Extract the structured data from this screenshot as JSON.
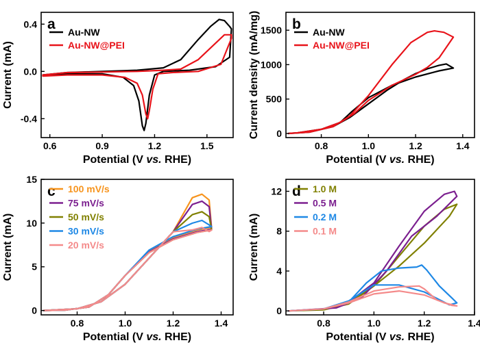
{
  "chart_data": [
    {
      "type": "line",
      "panel": "a",
      "xlabel": "Potential (V vs. RHE)",
      "ylabel": "Current (mA)",
      "xlim": [
        0.55,
        1.65
      ],
      "ylim": [
        -0.56,
        0.5
      ],
      "xticks": [
        0.6,
        0.9,
        1.2,
        1.5
      ],
      "xtick_labels": [
        "0.6",
        "0.9",
        "1.2",
        "1.5"
      ],
      "yticks": [
        0.4,
        0.0,
        -0.4
      ],
      "ytick_labels": [
        "0.4",
        "0.0",
        "-0.4"
      ],
      "legend_position": "top-left",
      "series": [
        {
          "name": "Au-NW",
          "color": "#000000",
          "points": [
            [
              0.56,
              -0.03
            ],
            [
              0.7,
              -0.01
            ],
            [
              0.9,
              0.0
            ],
            [
              1.1,
              0.01
            ],
            [
              1.25,
              0.03
            ],
            [
              1.35,
              0.1
            ],
            [
              1.45,
              0.27
            ],
            [
              1.52,
              0.38
            ],
            [
              1.57,
              0.44
            ],
            [
              1.6,
              0.43
            ],
            [
              1.63,
              0.38
            ],
            [
              1.64,
              0.36
            ],
            [
              1.63,
              0.12
            ],
            [
              1.55,
              0.04
            ],
            [
              1.4,
              0.01
            ],
            [
              1.25,
              0.0
            ],
            [
              1.2,
              -0.03
            ],
            [
              1.17,
              -0.2
            ],
            [
              1.15,
              -0.44
            ],
            [
              1.14,
              -0.5
            ],
            [
              1.13,
              -0.46
            ],
            [
              1.11,
              -0.25
            ],
            [
              1.08,
              -0.12
            ],
            [
              1.02,
              -0.05
            ],
            [
              0.9,
              -0.02
            ],
            [
              0.7,
              -0.02
            ],
            [
              0.56,
              -0.03
            ]
          ]
        },
        {
          "name": "Au-NW@PEI",
          "color": "#e8131a",
          "points": [
            [
              0.56,
              -0.03
            ],
            [
              0.7,
              -0.01
            ],
            [
              0.9,
              -0.005
            ],
            [
              1.1,
              0.0
            ],
            [
              1.25,
              0.01
            ],
            [
              1.35,
              0.02
            ],
            [
              1.45,
              0.1
            ],
            [
              1.55,
              0.24
            ],
            [
              1.6,
              0.31
            ],
            [
              1.64,
              0.31
            ],
            [
              1.64,
              0.28
            ],
            [
              1.58,
              0.06
            ],
            [
              1.45,
              0.0
            ],
            [
              1.3,
              -0.01
            ],
            [
              1.22,
              -0.02
            ],
            [
              1.19,
              -0.15
            ],
            [
              1.17,
              -0.33
            ],
            [
              1.16,
              -0.4
            ],
            [
              1.15,
              -0.36
            ],
            [
              1.13,
              -0.2
            ],
            [
              1.1,
              -0.1
            ],
            [
              1.03,
              -0.05
            ],
            [
              0.9,
              -0.03
            ],
            [
              0.7,
              -0.03
            ],
            [
              0.56,
              -0.04
            ]
          ]
        }
      ]
    },
    {
      "type": "line",
      "panel": "b",
      "xlabel": "Potential (V vs. RHE)",
      "ylabel": "Current density (mA/mg)",
      "xlim": [
        0.65,
        1.45
      ],
      "ylim": [
        -60,
        1760
      ],
      "xticks": [
        0.8,
        1.0,
        1.2,
        1.4
      ],
      "xtick_labels": [
        "0.8",
        "1.0",
        "1.2",
        "1.4"
      ],
      "yticks": [
        0,
        500,
        1000,
        1500
      ],
      "ytick_labels": [
        "0",
        "500",
        "1000",
        "1500"
      ],
      "legend_position": "top-left",
      "series": [
        {
          "name": "Au-NW",
          "color": "#000000",
          "points": [
            [
              0.66,
              0
            ],
            [
              0.75,
              20
            ],
            [
              0.85,
              100
            ],
            [
              0.92,
              230
            ],
            [
              1.0,
              430
            ],
            [
              1.08,
              630
            ],
            [
              1.15,
              780
            ],
            [
              1.2,
              870
            ],
            [
              1.25,
              940
            ],
            [
              1.3,
              990
            ],
            [
              1.33,
              1010
            ],
            [
              1.36,
              950
            ],
            [
              1.3,
              910
            ],
            [
              1.2,
              820
            ],
            [
              1.1,
              700
            ],
            [
              1.0,
              520
            ],
            [
              0.93,
              320
            ],
            [
              0.88,
              160
            ],
            [
              0.8,
              60
            ],
            [
              0.7,
              10
            ],
            [
              0.66,
              0
            ]
          ]
        },
        {
          "name": "Au-NW@PEI",
          "color": "#e8131a",
          "points": [
            [
              0.66,
              0
            ],
            [
              0.75,
              20
            ],
            [
              0.85,
              100
            ],
            [
              0.92,
              250
            ],
            [
              1.0,
              550
            ],
            [
              1.1,
              1000
            ],
            [
              1.18,
              1320
            ],
            [
              1.25,
              1470
            ],
            [
              1.28,
              1490
            ],
            [
              1.32,
              1470
            ],
            [
              1.36,
              1400
            ],
            [
              1.3,
              1100
            ],
            [
              1.25,
              960
            ],
            [
              1.2,
              860
            ],
            [
              1.1,
              700
            ],
            [
              1.0,
              480
            ],
            [
              0.94,
              290
            ],
            [
              0.88,
              160
            ],
            [
              0.8,
              60
            ],
            [
              0.7,
              10
            ],
            [
              0.66,
              0
            ]
          ]
        }
      ]
    },
    {
      "type": "line",
      "panel": "c",
      "xlabel": "Potential (V vs. RHE)",
      "ylabel": "Current (mA)",
      "xlim": [
        0.65,
        1.45
      ],
      "ylim": [
        -0.5,
        15
      ],
      "xticks": [
        0.8,
        1.0,
        1.2,
        1.4
      ],
      "xtick_labels": [
        "0.8",
        "1.0",
        "1.2",
        "1.4"
      ],
      "yticks": [
        0,
        5,
        10,
        15
      ],
      "ytick_labels": [
        "0",
        "5",
        "10",
        "15"
      ],
      "legend_position": "top-left",
      "series": [
        {
          "name": "100 mV/s",
          "color": "#f7941d",
          "peak": 13.3,
          "end": 9.5
        },
        {
          "name": "75 mV/s",
          "color": "#7b1f8f",
          "peak": 12.5,
          "end": 9.3
        },
        {
          "name": "50 mV/s",
          "color": "#808000",
          "peak": 11.3,
          "end": 9.2
        },
        {
          "name": "30 mV/s",
          "color": "#1e88e5",
          "peak": 10.3,
          "end": 9.6
        },
        {
          "name": "20 mV/s",
          "color": "#f48a8a",
          "peak": 9.5,
          "end": 9.2
        }
      ]
    },
    {
      "type": "line",
      "panel": "d",
      "xlabel": "Potential (V vs. RHE)",
      "ylabel": "Current (mA)",
      "xlim": [
        0.65,
        1.4
      ],
      "ylim": [
        -0.4,
        13.2
      ],
      "xticks": [
        0.8,
        1.0,
        1.2,
        1.4
      ],
      "xtick_labels": [
        "0.8",
        "1.0",
        "1.2",
        "1.4"
      ],
      "yticks": [
        0,
        4,
        8,
        12
      ],
      "ytick_labels": [
        "0",
        "4",
        "8",
        "12"
      ],
      "legend_position": "top-left",
      "series": [
        {
          "name": "1.0 M",
          "color": "#808000",
          "points": [
            [
              0.66,
              0
            ],
            [
              0.8,
              0.2
            ],
            [
              0.9,
              0.8
            ],
            [
              1.0,
              2.5
            ],
            [
              1.1,
              5.5
            ],
            [
              1.2,
              8.5
            ],
            [
              1.28,
              10.2
            ],
            [
              1.33,
              10.7
            ],
            [
              1.3,
              9.5
            ],
            [
              1.2,
              6.8
            ],
            [
              1.1,
              4.5
            ],
            [
              1.0,
              2.5
            ],
            [
              0.9,
              0.7
            ],
            [
              0.8,
              0.1
            ],
            [
              0.66,
              0
            ]
          ]
        },
        {
          "name": "0.5 M",
          "color": "#7b1f8f",
          "points": [
            [
              0.66,
              0
            ],
            [
              0.8,
              0.2
            ],
            [
              0.9,
              0.9
            ],
            [
              1.0,
              2.8
            ],
            [
              1.1,
              6.5
            ],
            [
              1.2,
              10.0
            ],
            [
              1.28,
              11.7
            ],
            [
              1.32,
              12.0
            ],
            [
              1.33,
              11.5
            ],
            [
              1.25,
              9.5
            ],
            [
              1.15,
              7.5
            ],
            [
              1.05,
              4.0
            ],
            [
              0.95,
              1.3
            ],
            [
              0.85,
              0.3
            ],
            [
              0.66,
              0
            ]
          ]
        },
        {
          "name": "0.2 M",
          "color": "#1e88e5",
          "points": [
            [
              0.66,
              0
            ],
            [
              0.8,
              0.2
            ],
            [
              0.9,
              0.9
            ],
            [
              0.97,
              2.8
            ],
            [
              1.03,
              4.0
            ],
            [
              1.1,
              4.3
            ],
            [
              1.17,
              4.4
            ],
            [
              1.19,
              4.6
            ],
            [
              1.21,
              4.1
            ],
            [
              1.26,
              2.5
            ],
            [
              1.31,
              1.3
            ],
            [
              1.33,
              0.8
            ],
            [
              1.3,
              0.6
            ],
            [
              1.2,
              1.9
            ],
            [
              1.1,
              2.6
            ],
            [
              1.0,
              2.6
            ],
            [
              0.9,
              1.0
            ],
            [
              0.8,
              0.2
            ],
            [
              0.66,
              0
            ]
          ]
        },
        {
          "name": "0.1 M",
          "color": "#f48a8a",
          "points": [
            [
              0.66,
              0
            ],
            [
              0.8,
              0.2
            ],
            [
              0.9,
              0.9
            ],
            [
              1.0,
              2.0
            ],
            [
              1.1,
              2.4
            ],
            [
              1.18,
              2.5
            ],
            [
              1.2,
              2.2
            ],
            [
              1.25,
              1.1
            ],
            [
              1.31,
              0.55
            ],
            [
              1.33,
              0.5
            ],
            [
              1.28,
              0.8
            ],
            [
              1.2,
              1.6
            ],
            [
              1.1,
              2.0
            ],
            [
              1.0,
              1.7
            ],
            [
              0.9,
              0.8
            ],
            [
              0.8,
              0.2
            ],
            [
              0.66,
              0
            ]
          ]
        }
      ]
    }
  ],
  "panel_labels": [
    "a",
    "b",
    "c",
    "d"
  ],
  "xlabel_prefix": "Potential (V ",
  "xlabel_italic": "vs.",
  "xlabel_suffix": " RHE)"
}
